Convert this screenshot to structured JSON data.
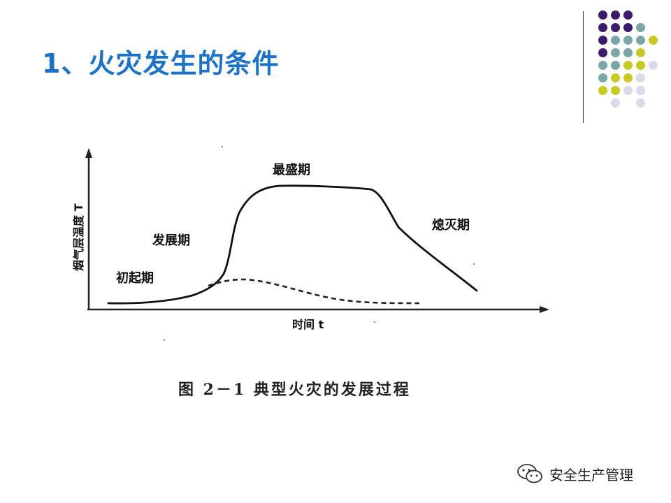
{
  "slide": {
    "title": "1、火灾发生的条件"
  },
  "decoration": {
    "colors": [
      "#3a1c6e",
      "#7aa6a8",
      "#c9c926",
      "#dcdaea"
    ],
    "grid": [
      [
        "#3a1c6e",
        "#3a1c6e",
        "#3a1c6e",
        null,
        null
      ],
      [
        "#3a1c6e",
        "#3a1c6e",
        "#3a1c6e",
        "#7aa6a8",
        null
      ],
      [
        "#3a1c6e",
        "#7aa6a8",
        "#7aa6a8",
        "#7aa6a8",
        "#c9c926"
      ],
      [
        "#3a1c6e",
        "#7aa6a8",
        "#7aa6a8",
        "#c9c926",
        null
      ],
      [
        "#7aa6a8",
        "#7aa6a8",
        "#c9c926",
        "#c9c926",
        "#dcdaea"
      ],
      [
        "#7aa6a8",
        "#c9c926",
        "#c9c926",
        "#dcdaea",
        null
      ],
      [
        "#c9c926",
        "#c9c926",
        "#dcdaea",
        "#dcdaea",
        null
      ],
      [
        null,
        "#dcdaea",
        null,
        "#dcdaea",
        null
      ]
    ]
  },
  "figure": {
    "y_axis_label": "烟气层温度 T",
    "x_axis_label": "时间 t",
    "stages": {
      "initial": "初起期",
      "growth": "发展期",
      "peak": "最盛期",
      "decay": "熄灭期"
    },
    "caption": "图 2－1   典型火灾的发展过程"
  },
  "watermark": {
    "text": "安全生产管理",
    "icon": "wechat-icon"
  }
}
